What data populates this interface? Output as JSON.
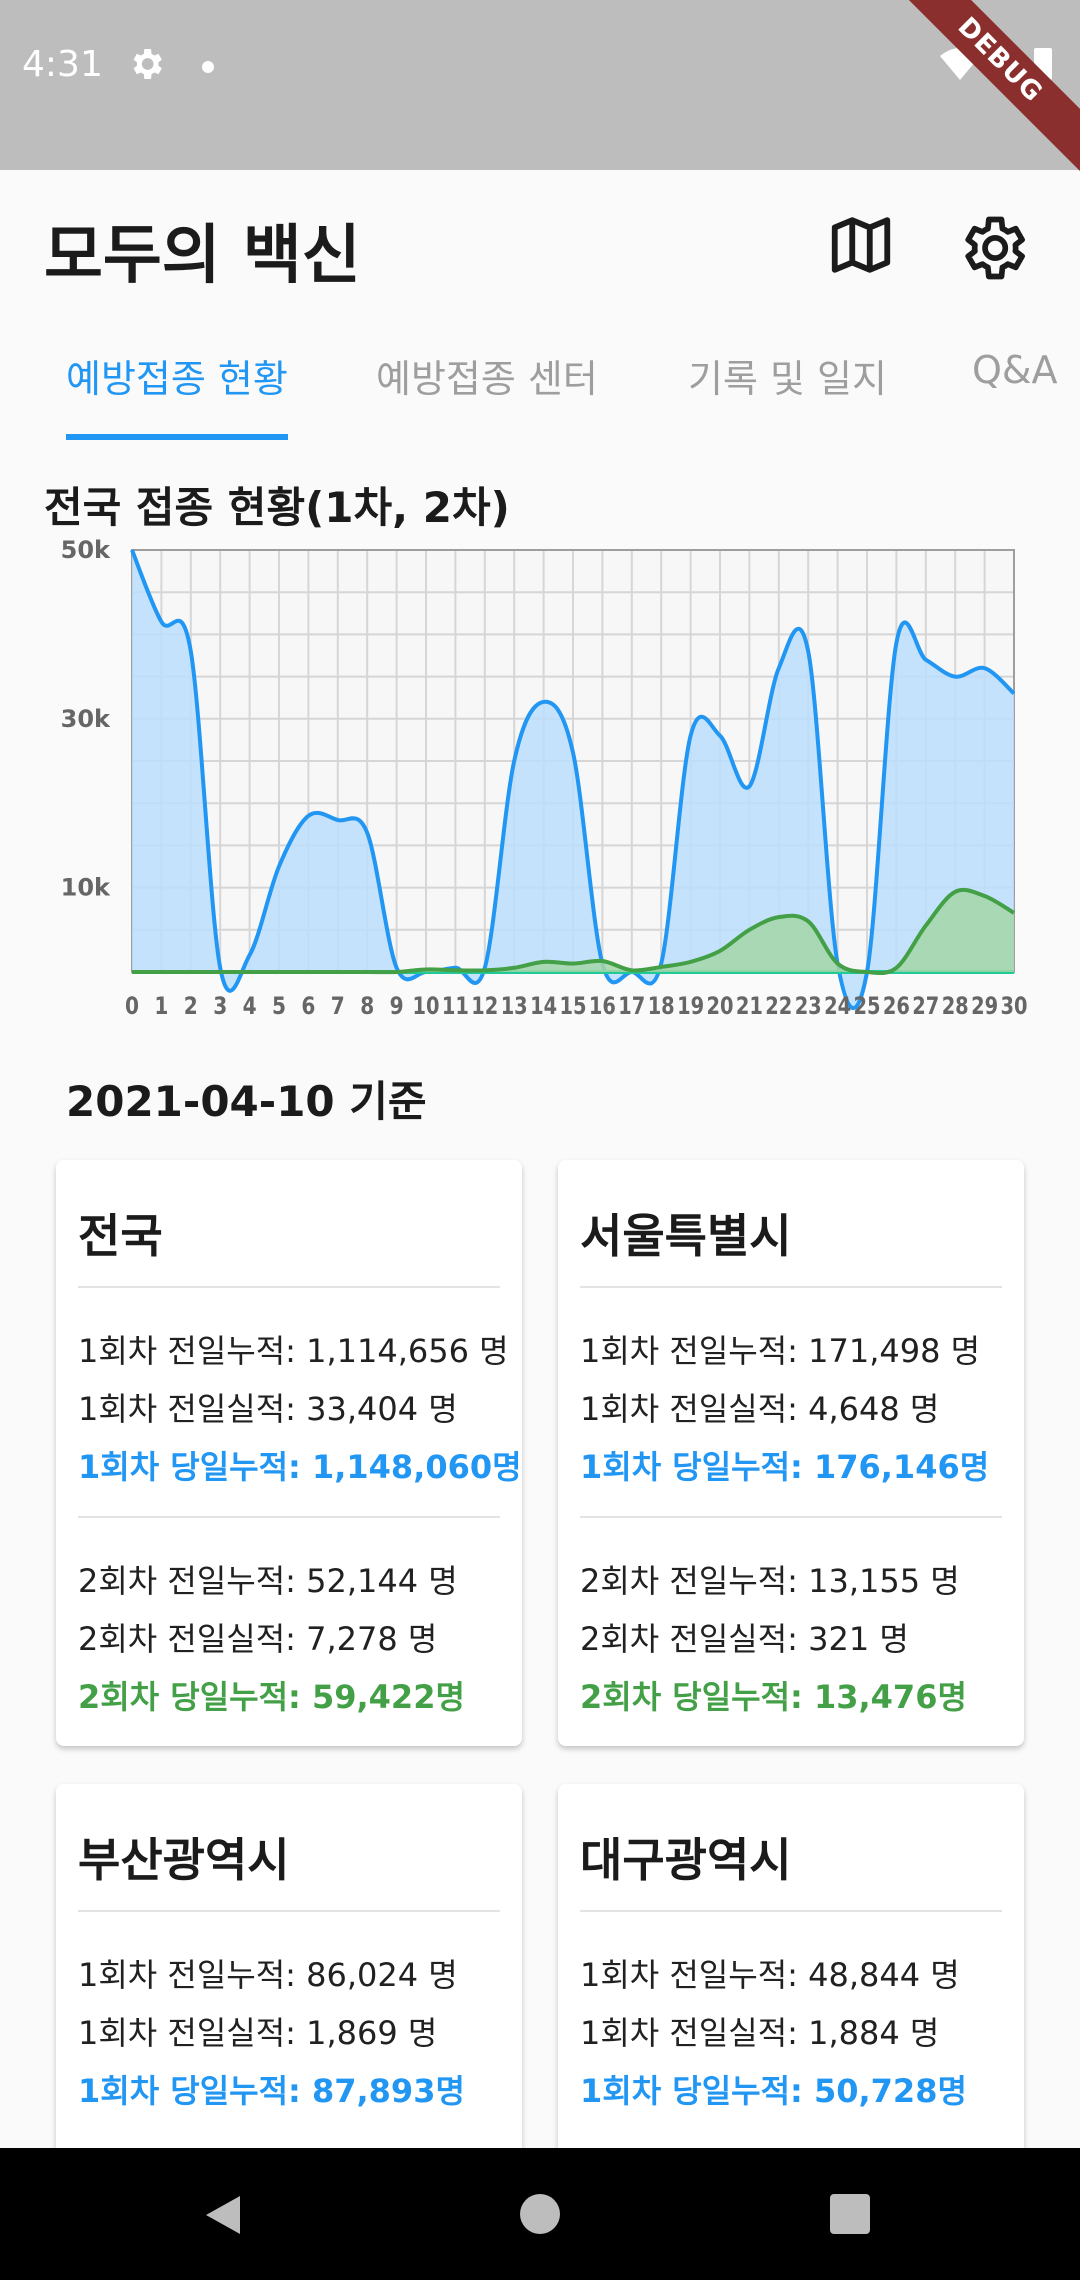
{
  "status_bar": {
    "time": "4:31",
    "debug_banner": "DEBUG"
  },
  "app_bar": {
    "title": "모두의 백신",
    "map_icon": "map-icon",
    "settings_icon": "gear-icon"
  },
  "tabs": [
    {
      "label": "예방접종 현황",
      "active": true
    },
    {
      "label": "예방접종 센터",
      "active": false
    },
    {
      "label": "기록 및 일지",
      "active": false
    },
    {
      "label": "Q&A",
      "active": false
    }
  ],
  "chart_title": "전국 접종 현황(1차, 2차)",
  "chart_data": {
    "type": "area",
    "x": [
      0,
      1,
      2,
      3,
      4,
      5,
      6,
      7,
      8,
      9,
      10,
      11,
      12,
      13,
      14,
      15,
      16,
      17,
      18,
      19,
      20,
      21,
      22,
      23,
      24,
      25,
      26,
      27,
      28,
      29,
      30
    ],
    "ylim": [
      0,
      50000
    ],
    "yticks": [
      10000,
      30000,
      50000
    ],
    "ytick_labels": [
      "10k",
      "30k",
      "50k"
    ],
    "xtick_labels": [
      "0",
      "1",
      "2",
      "3",
      "4",
      "5",
      "6",
      "7",
      "8",
      "9",
      "10",
      "11",
      "12",
      "13",
      "14",
      "15",
      "16",
      "17",
      "18",
      "19",
      "20",
      "21",
      "22",
      "23",
      "24",
      "25",
      "26",
      "27",
      "28",
      "29",
      "30"
    ],
    "grid": true,
    "series": [
      {
        "color": "#2196f3",
        "area": "#bbdefb",
        "values": [
          50000,
          41500,
          38000,
          500,
          2000,
          12500,
          18500,
          18000,
          16500,
          500,
          0,
          500,
          500,
          25000,
          32000,
          26000,
          1000,
          0,
          1000,
          28000,
          28000,
          22000,
          36000,
          38000,
          1000,
          0,
          39000,
          37000,
          35000,
          36000,
          33000
        ]
      },
      {
        "color": "#20c997",
        "area": "#a7ebd3",
        "values": [
          0,
          0,
          0,
          0,
          0,
          0,
          0,
          0,
          0,
          0,
          0,
          0,
          0,
          0,
          0,
          0,
          0,
          0,
          0,
          0,
          0,
          0,
          0,
          0,
          0,
          0,
          0,
          0,
          0,
          0,
          0
        ]
      },
      {
        "color": "#43a047",
        "area": "#a5d6a7",
        "values": [
          0,
          0,
          0,
          0,
          0,
          0,
          0,
          0,
          0,
          0,
          300,
          200,
          200,
          500,
          1200,
          1000,
          1300,
          200,
          600,
          1200,
          2500,
          5000,
          6500,
          6000,
          1000,
          0,
          500,
          5500,
          9500,
          9000,
          7000
        ]
      }
    ]
  },
  "date_label": "2021-04-10 기준",
  "cards": [
    {
      "title": "전국",
      "dose1": [
        "1회차 전일누적: 1,114,656 명",
        "1회차 전일실적: 33,404 명",
        "1회차 당일누적: 1,148,060명"
      ],
      "dose2": [
        "2회차 전일누적: 52,144 명",
        "2회차 전일실적: 7,278 명",
        "2회차 당일누적: 59,422명"
      ]
    },
    {
      "title": "서울특별시",
      "dose1": [
        "1회차 전일누적: 171,498 명",
        "1회차 전일실적: 4,648 명",
        "1회차 당일누적: 176,146명"
      ],
      "dose2": [
        "2회차 전일누적: 13,155 명",
        "2회차 전일실적: 321 명",
        "2회차 당일누적: 13,476명"
      ]
    },
    {
      "title": "부산광역시",
      "dose1": [
        "1회차 전일누적: 86,024 명",
        "1회차 전일실적: 1,869 명",
        "1회차 당일누적: 87,893명"
      ]
    },
    {
      "title": "대구광역시",
      "dose1": [
        "1회차 전일누적: 48,844 명",
        "1회차 전일실적: 1,884 명",
        "1회차 당일누적: 50,728명"
      ]
    }
  ],
  "colors": {
    "accent_blue": "#2196f3",
    "accent_green": "#43a047"
  }
}
